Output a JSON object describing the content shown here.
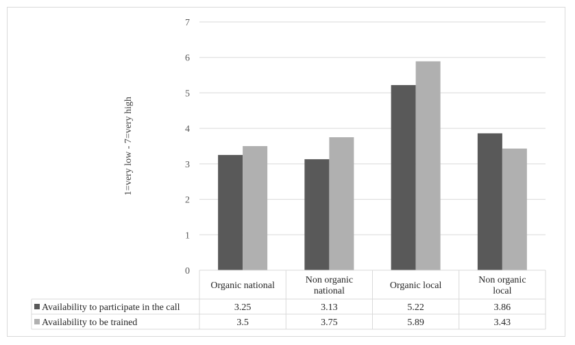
{
  "chart_data": {
    "type": "bar",
    "title": "",
    "xlabel": "",
    "ylabel": "1=very low - 7=very high",
    "ylim": [
      0,
      7
    ],
    "yticks": [
      0,
      1,
      2,
      3,
      4,
      5,
      6,
      7
    ],
    "grid": true,
    "legend": "data-table-left",
    "categories": [
      [
        "Organic national"
      ],
      [
        "Non organic",
        "national"
      ],
      [
        "Organic local"
      ],
      [
        "Non organic",
        "local"
      ]
    ],
    "series": [
      {
        "name": "Availability to participate in the call",
        "color": "#595959",
        "values": [
          3.25,
          3.13,
          5.22,
          3.86
        ],
        "labels": [
          "3.25",
          "3.13",
          "5.22",
          "3.86"
        ]
      },
      {
        "name": "Availability to be trained",
        "color": "#b0b0b0",
        "values": [
          3.5,
          3.75,
          5.89,
          3.43
        ],
        "labels": [
          "3.5",
          "3.75",
          "5.89",
          "3.43"
        ]
      }
    ]
  }
}
